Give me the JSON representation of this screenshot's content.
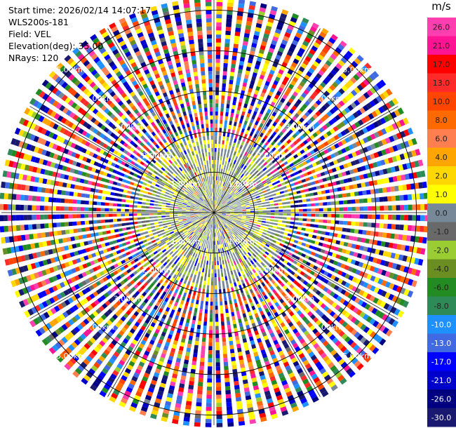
{
  "header": {
    "start_time": "Start time: 2026/02/14 14:07:17",
    "instrument": "WLS200s-181",
    "field": "Field: VEL",
    "elevation": "Elevation(deg): 35.00",
    "nrays": "NRays: 120"
  },
  "chart_data": {
    "type": "heatmap",
    "projection": "polar-ppi",
    "field": "VEL",
    "units": "m/s",
    "n_rays": 120,
    "range_rings_km": [
      1.0,
      2.0,
      3.0,
      4.0,
      5.0
    ],
    "ring_labels": [
      "1.00km",
      "2.00km",
      "3.00km",
      "4.00km",
      "5.00km"
    ],
    "max_range_km": 5.25,
    "colorbar": {
      "title": "m/s",
      "tick_labels": [
        "26.0",
        "21.0",
        "17.0",
        "13.0",
        "10.0",
        "8.0",
        "6.0",
        "4.0",
        "2.0",
        "1.0",
        "0.0",
        "-1.0",
        "-2.0",
        "-4.0",
        "-6.0",
        "-8.0",
        "-10.0",
        "-13.0",
        "-17.0",
        "-21.0",
        "-26.0",
        "-30.0"
      ],
      "colors": [
        "#ff3fb0",
        "#ff1493",
        "#ff0000",
        "#ff2a2a",
        "#ff4500",
        "#ff6a00",
        "#ff7f50",
        "#ffa500",
        "#ffd700",
        "#ffff00",
        "#778899",
        "#696969",
        "#9acd32",
        "#6b8e23",
        "#228b22",
        "#2e8b57",
        "#1e90ff",
        "#4169e1",
        "#0000ff",
        "#0000cd",
        "#000080",
        "#191970"
      ]
    }
  }
}
